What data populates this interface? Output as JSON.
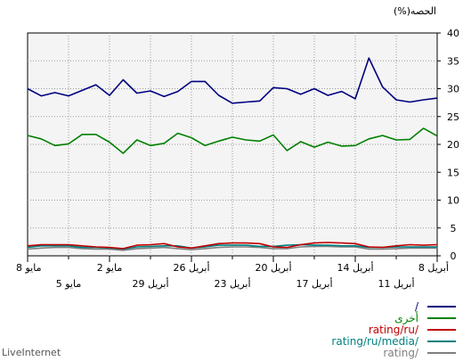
{
  "brand": "LiveInternet",
  "chart_data": {
    "type": "line",
    "ylabel": "(%)الحصه",
    "ylim": [
      0,
      40
    ],
    "y_ticks": [
      0,
      5,
      10,
      15,
      20,
      25,
      30,
      35,
      40
    ],
    "grid": true,
    "legend_position": "bottom-right",
    "x_ticks_row1": [
      {
        "label": "8 مايو",
        "i": 0
      },
      {
        "label": "2 مايو",
        "i": 6
      },
      {
        "label": "26 أبريل",
        "i": 12
      },
      {
        "label": "20 أبريل",
        "i": 18
      },
      {
        "label": "14 أبريل",
        "i": 24
      },
      {
        "label": "8 أبريل",
        "i": 30
      }
    ],
    "x_ticks_row2": [
      {
        "label": "5 مايو",
        "i": 3
      },
      {
        "label": "29 أبريل",
        "i": 9
      },
      {
        "label": "23 أبريل",
        "i": 15
      },
      {
        "label": "17 أبريل",
        "i": 21
      },
      {
        "label": "11 أبريل",
        "i": 27
      }
    ],
    "series": [
      {
        "name": "/",
        "color": "#000080",
        "values": [
          30,
          28.7,
          29.3,
          28.7,
          29.7,
          30.7,
          28.8,
          31.6,
          29.2,
          29.6,
          28.6,
          29.5,
          31.3,
          31.3,
          28.8,
          27.4,
          27.6,
          27.8,
          30.2,
          30,
          29,
          30,
          28.8,
          29.5,
          28.2,
          35.5,
          30.3,
          28,
          27.6,
          28,
          28.3
        ]
      },
      {
        "name": "أخرى",
        "color": "#008000",
        "values": [
          21.6,
          21,
          19.8,
          20.1,
          21.8,
          21.8,
          20.4,
          18.4,
          20.8,
          19.8,
          20.2,
          22,
          21.2,
          19.8,
          20.6,
          21.3,
          20.8,
          20.6,
          21.7,
          18.9,
          20.5,
          19.5,
          20.4,
          19.7,
          19.8,
          21,
          21.6,
          20.8,
          20.9,
          22.9,
          21.5
        ]
      },
      {
        "name": "rating/ru/",
        "color": "#c00000",
        "values": [
          1.8,
          2,
          2,
          2,
          1.8,
          1.6,
          1.5,
          1.3,
          1.9,
          2,
          2.2,
          1.6,
          1.4,
          1.8,
          2.2,
          2.3,
          2.3,
          2.2,
          1.6,
          1.5,
          2,
          2.3,
          2.4,
          2.3,
          2.2,
          1.6,
          1.5,
          1.8,
          2,
          1.9,
          2
        ]
      },
      {
        "name": "rating/ru/media/",
        "color": "#008080",
        "values": [
          1.5,
          1.8,
          1.8,
          1.8,
          1.5,
          1.5,
          1.4,
          1.2,
          1.6,
          1.7,
          1.8,
          1.8,
          1.4,
          1.6,
          1.9,
          1.9,
          1.9,
          1.7,
          1.7,
          1.9,
          2,
          1.9,
          1.9,
          1.8,
          1.8,
          1.5,
          1.5,
          1.6,
          1.6,
          1.6,
          1.6
        ]
      },
      {
        "name": "rating/",
        "color": "#808080",
        "values": [
          1.2,
          1.4,
          1.5,
          1.5,
          1.3,
          1.2,
          1.2,
          1,
          1.3,
          1.4,
          1.5,
          1.3,
          1.1,
          1.3,
          1.5,
          1.6,
          1.6,
          1.5,
          1.3,
          1.3,
          1.6,
          1.7,
          1.7,
          1.6,
          1.6,
          1.2,
          1.2,
          1.3,
          1.4,
          1.4,
          1.4
        ]
      }
    ]
  }
}
